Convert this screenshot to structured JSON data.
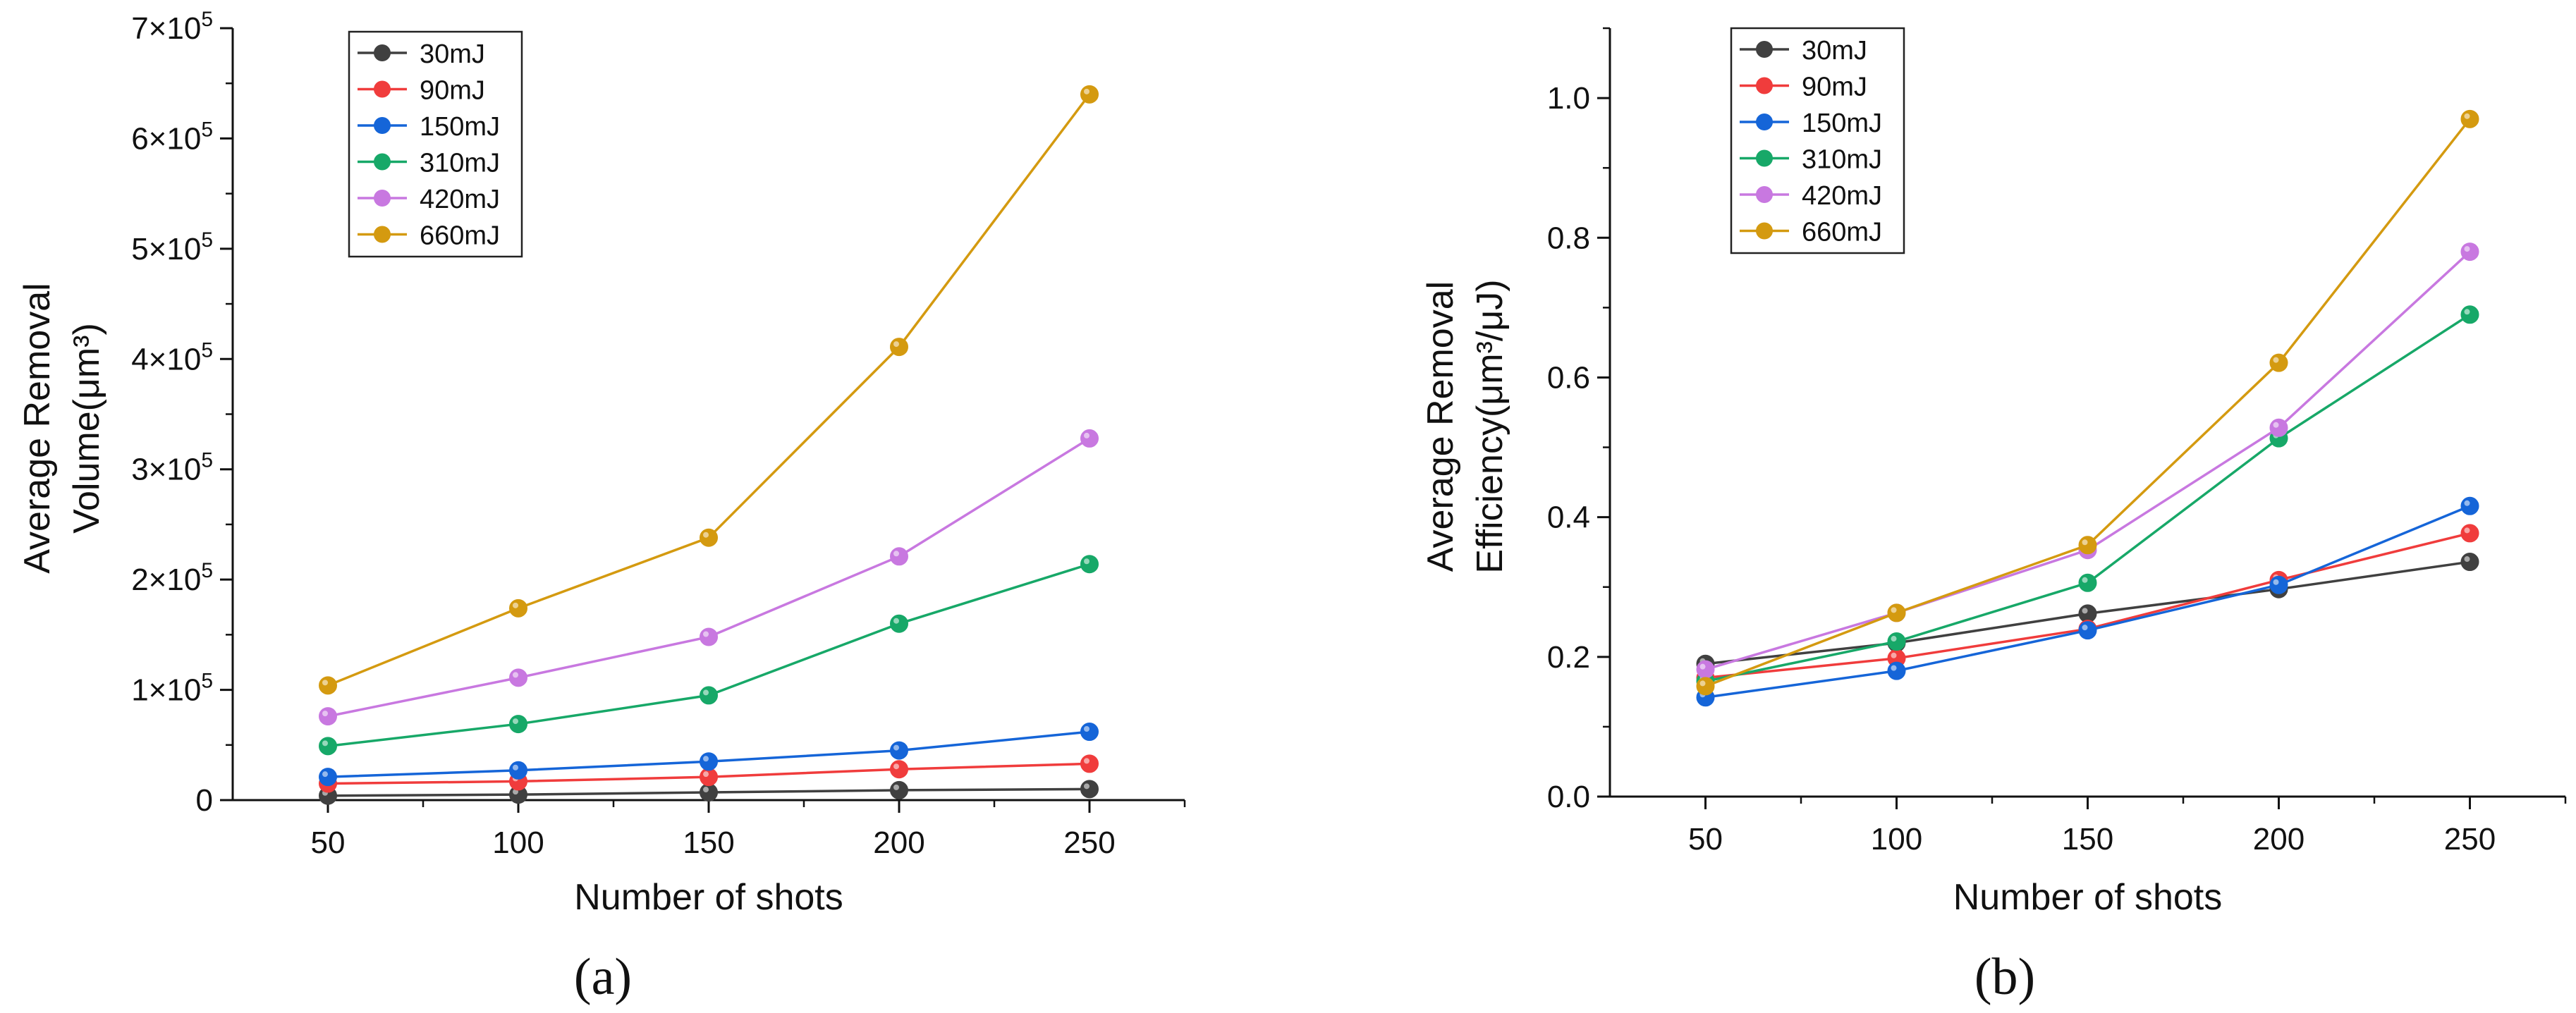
{
  "chart_data": [
    {
      "type": "line",
      "panel_label": "(a)",
      "x": [
        50,
        100,
        150,
        200,
        250
      ],
      "xlabel": "Number of shots",
      "ylabel_line1": "Average Removal",
      "ylabel_line2": "Volume(μm³)",
      "xlim": [
        25,
        275
      ],
      "ylim": [
        0,
        700000
      ],
      "x_ticks": [
        "50",
        "100",
        "150",
        "200",
        "250"
      ],
      "y_ticks": [
        {
          "value": 0,
          "mantissa": "0",
          "exponent": ""
        },
        {
          "value": 100000,
          "mantissa": "1×10",
          "exponent": "5"
        },
        {
          "value": 200000,
          "mantissa": "2×10",
          "exponent": "5"
        },
        {
          "value": 300000,
          "mantissa": "3×10",
          "exponent": "5"
        },
        {
          "value": 400000,
          "mantissa": "4×10",
          "exponent": "5"
        },
        {
          "value": 500000,
          "mantissa": "5×10",
          "exponent": "5"
        },
        {
          "value": 600000,
          "mantissa": "6×10",
          "exponent": "5"
        },
        {
          "value": 700000,
          "mantissa": "7×10",
          "exponent": "5"
        }
      ],
      "legend_position": "top-left",
      "grid": false,
      "series": [
        {
          "name": "30mJ",
          "color": "#404040",
          "values": [
            4000,
            5000,
            7000,
            9000,
            10000
          ]
        },
        {
          "name": "90mJ",
          "color": "#f03c3c",
          "values": [
            15000,
            17000,
            21000,
            28000,
            33000
          ]
        },
        {
          "name": "150mJ",
          "color": "#1565d8",
          "values": [
            21000,
            27000,
            35000,
            45000,
            62000
          ]
        },
        {
          "name": "310mJ",
          "color": "#17a868",
          "values": [
            49000,
            69000,
            95000,
            160000,
            214000
          ]
        },
        {
          "name": "420mJ",
          "color": "#c878e0",
          "values": [
            76000,
            111000,
            148000,
            221000,
            328000
          ]
        },
        {
          "name": "660mJ",
          "color": "#d49a10",
          "values": [
            104000,
            174000,
            238000,
            411000,
            640000
          ]
        }
      ]
    },
    {
      "type": "line",
      "panel_label": "(b)",
      "x": [
        50,
        100,
        150,
        200,
        250
      ],
      "xlabel": "Number of shots",
      "ylabel_line1": "Average Removal",
      "ylabel_line2": "Efficiency(μm³/μJ)",
      "xlim": [
        25,
        275
      ],
      "ylim": [
        0,
        1.1
      ],
      "x_ticks": [
        "50",
        "100",
        "150",
        "200",
        "250"
      ],
      "y_ticks": [
        {
          "value": 0.0,
          "mantissa": "0.0",
          "exponent": ""
        },
        {
          "value": 0.2,
          "mantissa": "0.2",
          "exponent": ""
        },
        {
          "value": 0.4,
          "mantissa": "0.4",
          "exponent": ""
        },
        {
          "value": 0.6,
          "mantissa": "0.6",
          "exponent": ""
        },
        {
          "value": 0.8,
          "mantissa": "0.8",
          "exponent": ""
        },
        {
          "value": 1.0,
          "mantissa": "1.0",
          "exponent": ""
        }
      ],
      "legend_position": "top-left",
      "grid": false,
      "series": [
        {
          "name": "30mJ",
          "color": "#404040",
          "values": [
            0.19,
            0.22,
            0.262,
            0.297,
            0.336
          ]
        },
        {
          "name": "90mJ",
          "color": "#f03c3c",
          "values": [
            0.17,
            0.198,
            0.24,
            0.31,
            0.377
          ]
        },
        {
          "name": "150mJ",
          "color": "#1565d8",
          "values": [
            0.142,
            0.18,
            0.238,
            0.303,
            0.416
          ]
        },
        {
          "name": "310mJ",
          "color": "#17a868",
          "values": [
            0.165,
            0.222,
            0.306,
            0.513,
            0.69
          ]
        },
        {
          "name": "420mJ",
          "color": "#c878e0",
          "values": [
            0.182,
            0.263,
            0.353,
            0.528,
            0.78
          ]
        },
        {
          "name": "660mJ",
          "color": "#d49a10",
          "values": [
            0.158,
            0.263,
            0.36,
            0.621,
            0.97
          ]
        }
      ]
    }
  ]
}
